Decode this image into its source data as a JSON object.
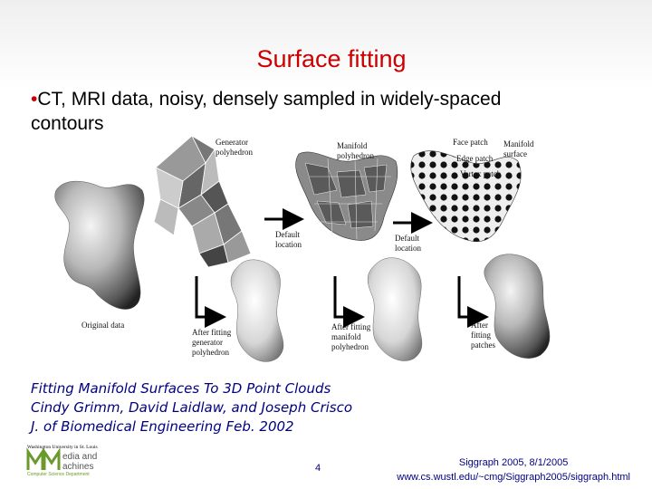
{
  "slide": {
    "title": "Surface fitting",
    "bullet_marker": "•",
    "bullet_text_line1": "CT, MRI data, noisy, densely sampled in widely-spaced",
    "bullet_text_line2": "contours"
  },
  "figure": {
    "labels": {
      "generator_line1": "Generator",
      "generator_line2": "polyhedron",
      "manifold_line1": "Manifold",
      "manifold_line2": "polyhedron",
      "face_patch": "Face patch",
      "edge_patch": "Edge patch",
      "vertex_patch": "Vertex patch",
      "manifold_surface_line1": "Manifold",
      "manifold_surface_line2": "surface",
      "default_location_1_line1": "Default",
      "default_location_1_line2": "location",
      "default_location_2_line1": "Default",
      "default_location_2_line2": "location",
      "original_data": "Original data",
      "after_fitting_generator_line1": "After fitting",
      "after_fitting_generator_line2": "generator",
      "after_fitting_generator_line3": "polyhedron",
      "after_fitting_manifold_line1": "After fitting",
      "after_fitting_manifold_line2": "manifold",
      "after_fitting_manifold_line3": "polyhedron",
      "after_fitting_patches_line1": "After",
      "after_fitting_patches_line2": "fitting",
      "after_fitting_patches_line3": "patches"
    }
  },
  "citation": {
    "line1": "Fitting Manifold Surfaces To 3D Point Clouds",
    "line2": "Cindy Grimm, David Laidlaw, and Joseph Crisco",
    "line3": "J. of Biomedical Engineering Feb. 2002"
  },
  "logo": {
    "university_text": "Washington University in St. Louis",
    "line1": "edia and",
    "line2": "achines",
    "department": "Computer Science Department",
    "brand_color": "#6a9a2a"
  },
  "page_number": "4",
  "footer": {
    "line1": "Siggraph 2005, 8/1/2005",
    "line2": "www.cs.wustl.edu/~cmg/Siggraph2005/siggraph.html"
  },
  "colors": {
    "title": "#cc0000",
    "citation": "#000080"
  }
}
